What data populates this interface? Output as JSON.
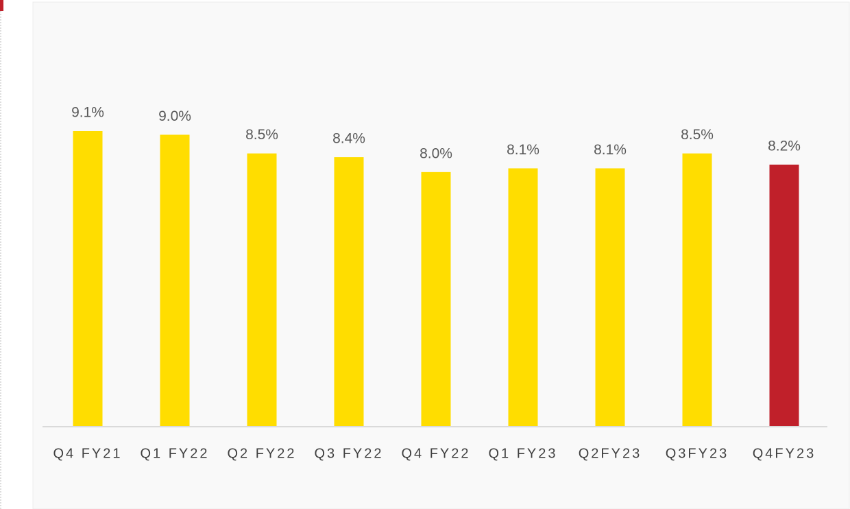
{
  "chart_data": {
    "type": "bar",
    "categories": [
      "Q4 FY21",
      "Q1 FY22",
      "Q2 FY22",
      "Q3 FY22",
      "Q4 FY22",
      "Q1 FY23",
      "Q2FY23",
      "Q3FY23",
      "Q4FY23"
    ],
    "values": [
      9.1,
      9.0,
      8.5,
      8.4,
      8.0,
      8.1,
      8.1,
      8.5,
      8.2
    ],
    "value_labels": [
      "9.1%",
      "9.0%",
      "8.5%",
      "8.4%",
      "8.0%",
      "8.1%",
      "8.1%",
      "8.5%",
      "8.2%"
    ],
    "colors": [
      "#ffdd00",
      "#ffdd00",
      "#ffdd00",
      "#ffdd00",
      "#ffdd00",
      "#ffdd00",
      "#ffdd00",
      "#ffdd00",
      "#c0202a"
    ],
    "ylim": [
      1.2,
      10
    ]
  }
}
